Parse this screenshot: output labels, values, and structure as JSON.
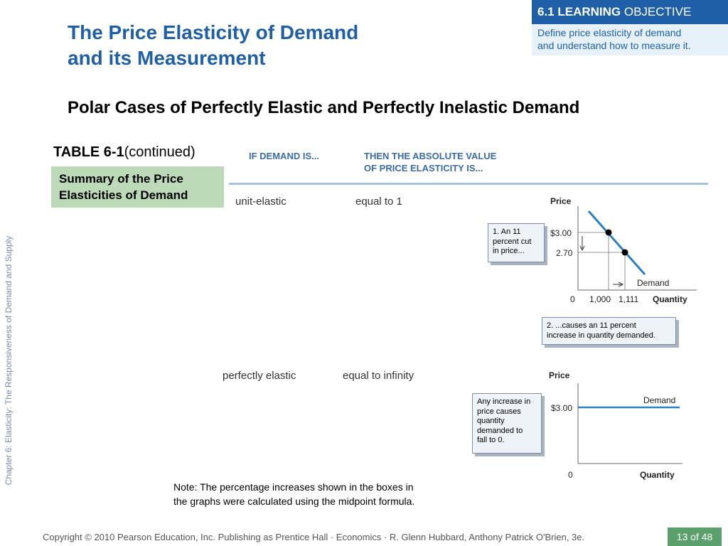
{
  "title_line1": "The Price Elasticity of Demand",
  "title_line2": "and its Measurement",
  "objective": {
    "head_bold": "6.1 LEARNING",
    "head_rest": " OBJECTIVE",
    "line1": "Define price elasticity of demand",
    "line2": "and understand how to measure it."
  },
  "subtitle": "Polar Cases of Perfectly Elastic and Perfectly Inelastic Demand",
  "side_text": "Chapter 6:  Elasticity:  The Responsiveness of Demand and Supply",
  "table": {
    "label": "TABLE 6-1",
    "label_cont": "(continued)",
    "summary_line1": "Summary of the Price",
    "summary_line2": "Elasticities of Demand",
    "col1": "IF DEMAND IS...",
    "col2_line1": "THEN THE ABSOLUTE VALUE",
    "col2_line2": "OF PRICE ELASTICITY IS...",
    "rows": [
      {
        "demand": "unit-elastic",
        "elasticity": "equal to 1"
      },
      {
        "demand": "perfectly elastic",
        "elasticity": "equal to infinity"
      }
    ]
  },
  "graph1": {
    "price_axis": "Price",
    "quantity_axis": "Quantity",
    "origin": "0",
    "p1": "$3.00",
    "p2": "2.70",
    "q1": "1,000",
    "q2": "1,111",
    "curve_label": "Demand",
    "callout1": [
      "1. An 11",
      "percent cut",
      "in price..."
    ],
    "callout2": [
      "2. ...causes an 11 percent",
      "increase in quantity demanded."
    ],
    "colors": {
      "curve": "#2e7fc1",
      "points": "#000000"
    }
  },
  "graph2": {
    "price_axis": "Price",
    "quantity_axis": "Quantity",
    "origin": "0",
    "p1": "$3.00",
    "curve_label": "Demand",
    "callout": [
      "Any increase in",
      "price causes",
      "quantity",
      "demanded to",
      "fall to 0."
    ],
    "colors": {
      "curve": "#2e7fc1"
    }
  },
  "note_line1": "Note: The percentage increases shown in the boxes in",
  "note_line2": "the graphs were calculated using the midpoint formula.",
  "footer": "Copyright © 2010 Pearson Education, Inc. Publishing as Prentice Hall · Economics · R. Glenn Hubbard, Anthony Patrick O'Brien, 3e.",
  "pager": {
    "current": "13",
    "sep": " of ",
    "total": "48"
  },
  "chart_data": [
    {
      "type": "line",
      "xlabel": "Quantity",
      "ylabel": "Price",
      "x": [
        1000,
        1111
      ],
      "y": [
        3.0,
        2.7
      ],
      "series": [
        {
          "name": "Demand",
          "values": [
            3.0,
            2.7
          ]
        }
      ]
    },
    {
      "type": "line",
      "xlabel": "Quantity",
      "ylabel": "Price",
      "series": [
        {
          "name": "Demand",
          "values": [
            3.0
          ]
        }
      ]
    }
  ]
}
